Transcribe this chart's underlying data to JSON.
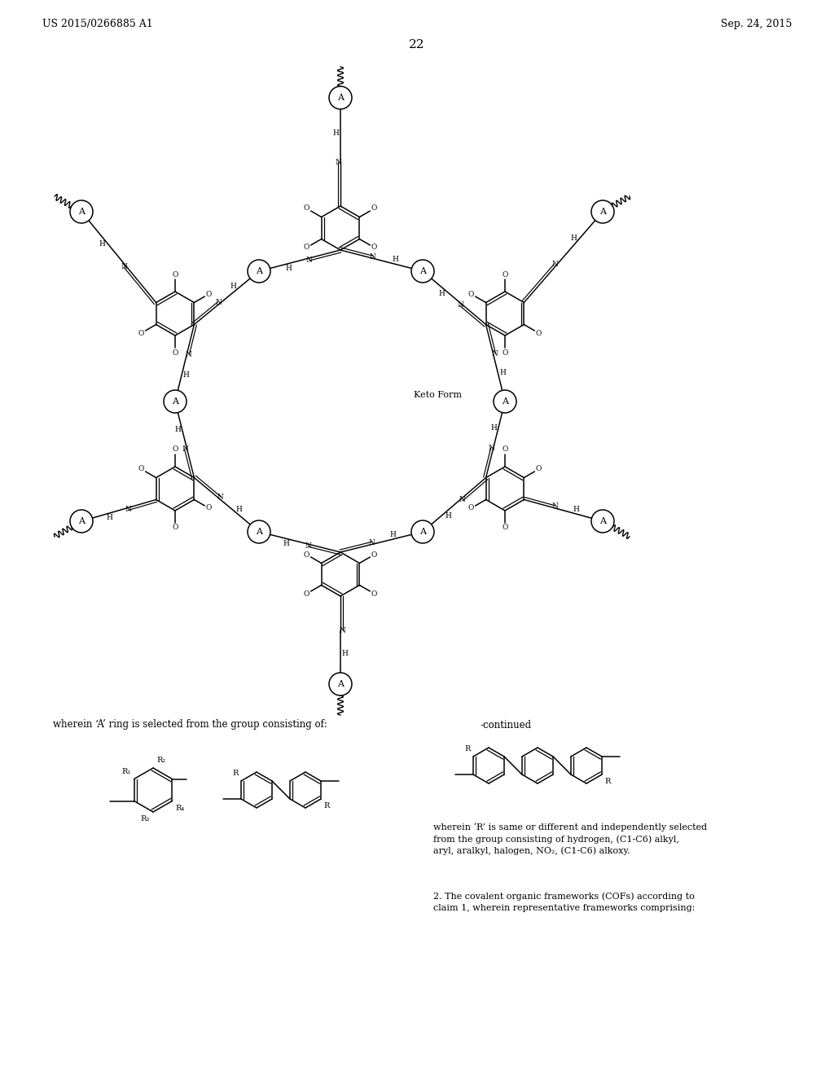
{
  "header_left": "US 2015/0266885 A1",
  "header_right": "Sep. 24, 2015",
  "page_num": "22",
  "keto_label": "Keto Form",
  "a_ring_label": "wherein ‘A’ ring is selected from the group consisting of:",
  "continued": "-continued",
  "r_desc": "wherein ‘R’ is same or different and independently selected\nfrom the group consisting of hydrogen, (C1-C6) alkyl,\naryl, aralkyl, halogen, NO₂, (C1-C6) alkoxy.",
  "claim2": "2. The covalent organic frameworks (COFs) according to\nclaim 1, wherein representative frameworks comprising:",
  "bg": "#ffffff",
  "lc": "#000000"
}
